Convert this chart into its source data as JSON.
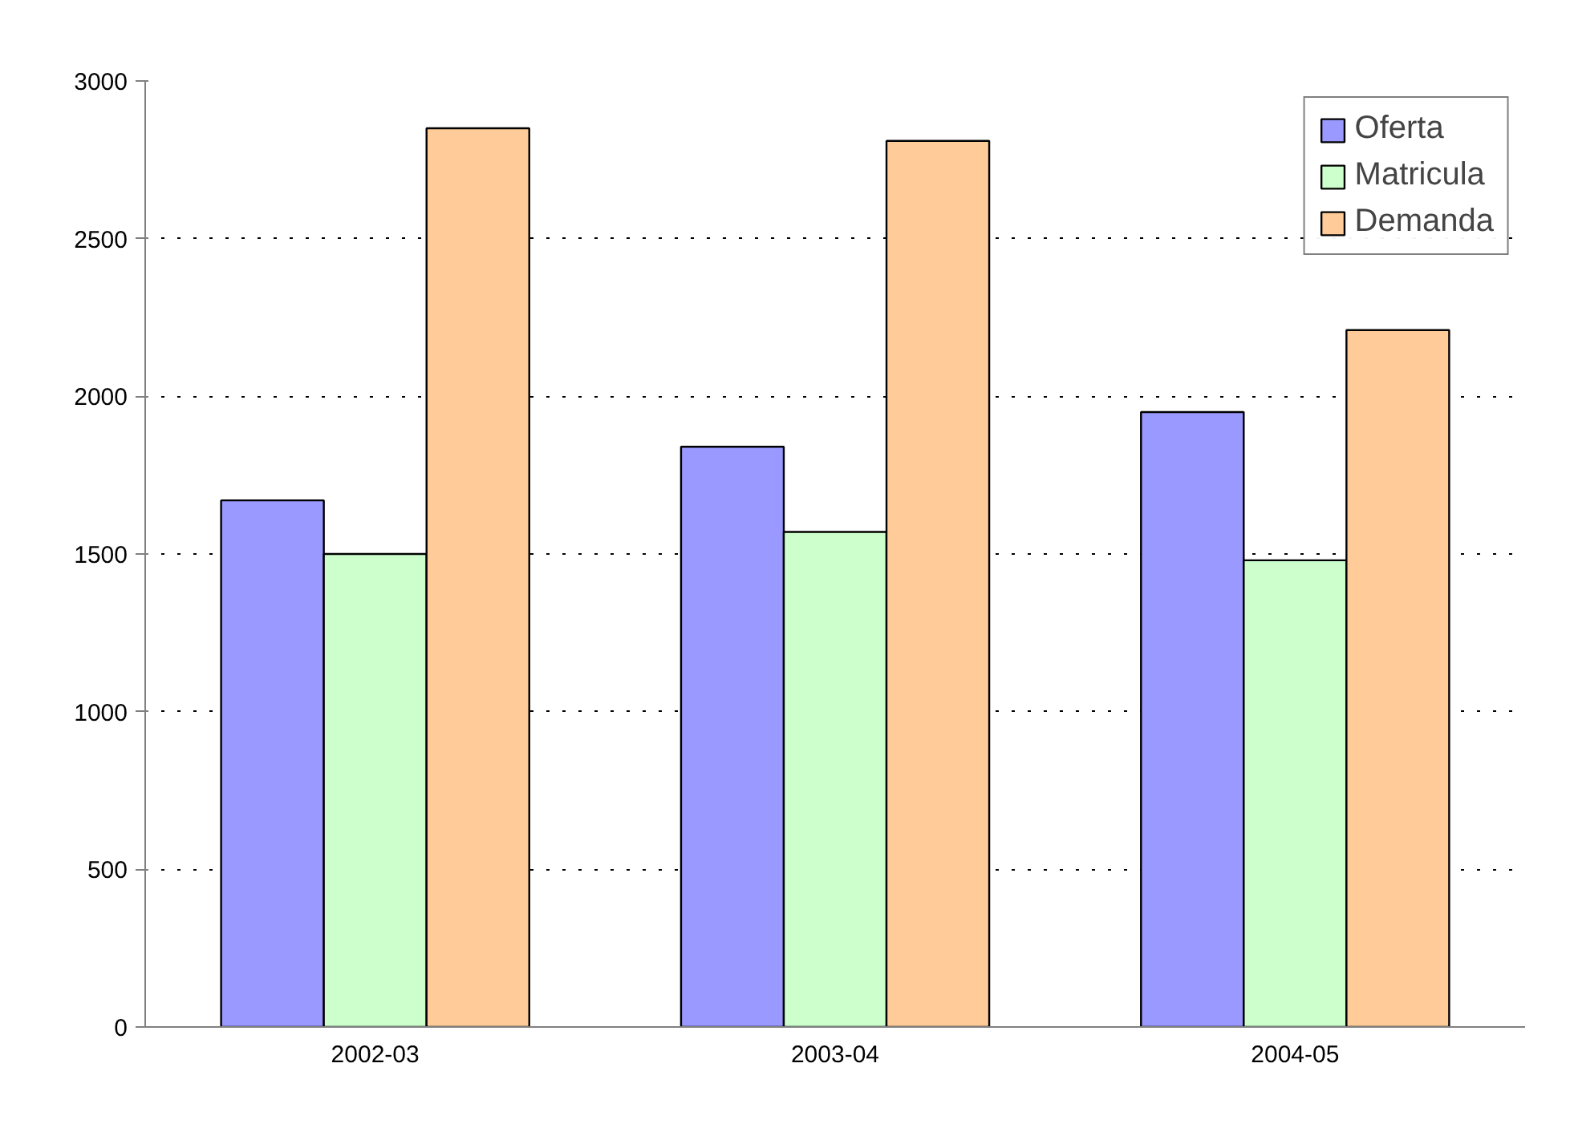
{
  "chart_data": {
    "type": "bar",
    "categories": [
      "2002-03",
      "2003-04",
      "2004-05"
    ],
    "series": [
      {
        "name": "Oferta",
        "color": "#9999ff",
        "values": [
          1670,
          1840,
          1950
        ]
      },
      {
        "name": "Matricula",
        "color": "#ccffcc",
        "values": [
          1500,
          1570,
          1480
        ]
      },
      {
        "name": "Demanda",
        "color": "#ffcc99",
        "values": [
          2850,
          2810,
          2210
        ]
      }
    ],
    "ylim": [
      0,
      3000
    ],
    "yticks": [
      0,
      500,
      1000,
      1500,
      2000,
      2500,
      3000
    ],
    "grid": "y",
    "legend": "top right"
  }
}
